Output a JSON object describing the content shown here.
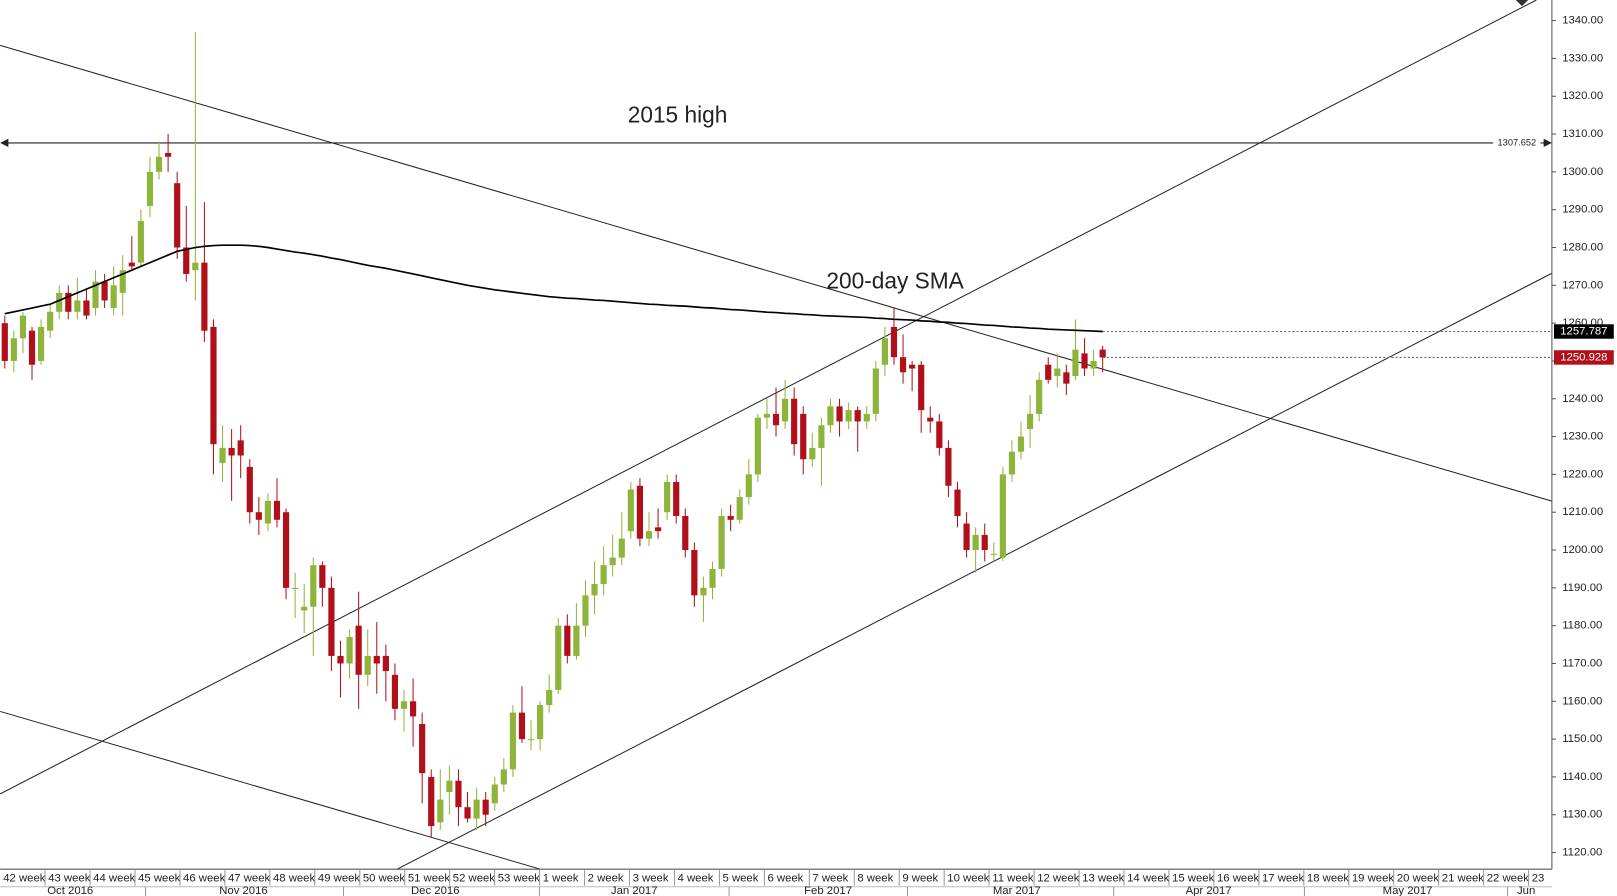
{
  "chart_data": {
    "type": "candlestick",
    "up_color": "#8fb43c",
    "down_color": "#b0101a",
    "open": [
      1260,
      1250,
      1256,
      1258,
      1250,
      1258,
      1263,
      1268,
      1263,
      1266,
      1264,
      1271,
      1264,
      1268,
      1276,
      1276,
      1291,
      1300,
      1305,
      1297,
      1280,
      1274,
      1276,
      1259,
      1223,
      1227,
      1229,
      1222,
      1210,
      1207,
      1213,
      1210,
      1190,
      1184,
      1185,
      1196,
      1190,
      1172,
      1170,
      1180,
      1167,
      1172,
      1172,
      1167,
      1158,
      1160,
      1154,
      1140,
      1128,
      1136,
      1139,
      1132,
      1129,
      1134,
      1133,
      1138,
      1142,
      1157,
      1150,
      1150,
      1159,
      1163,
      1180,
      1172,
      1180,
      1188,
      1191,
      1196,
      1198,
      1205,
      1217,
      1203,
      1206,
      1210,
      1218,
      1209,
      1200,
      1188,
      1190,
      1195,
      1209,
      1208,
      1214,
      1220,
      1235,
      1236,
      1234,
      1240,
      1236,
      1224,
      1227,
      1233,
      1238,
      1234,
      1237,
      1234,
      1236,
      1249,
      1259,
      1251,
      1249,
      1249,
      1235,
      1234,
      1227,
      1216,
      1207,
      1200,
      1204,
      1199,
      1198,
      1220,
      1226,
      1232,
      1236,
      1249,
      1246,
      1247,
      1246,
      1252,
      1248,
      1253
    ],
    "high": [
      1262,
      1258,
      1263,
      1259,
      1261,
      1265,
      1270,
      1270,
      1272,
      1269,
      1274,
      1273,
      1275,
      1278,
      1283,
      1290,
      1304,
      1308,
      1310,
      1300,
      1291,
      1337,
      1292,
      1261,
      1233,
      1232,
      1233,
      1224,
      1214,
      1215,
      1219,
      1211,
      1194,
      1191,
      1198,
      1197,
      1193,
      1176,
      1179,
      1189,
      1179,
      1181,
      1175,
      1170,
      1163,
      1166,
      1157,
      1142,
      1142,
      1143,
      1142,
      1136,
      1137,
      1136,
      1140,
      1145,
      1159,
      1164,
      1155,
      1160,
      1167,
      1182,
      1183,
      1186,
      1192,
      1197,
      1201,
      1204,
      1210,
      1218,
      1219,
      1210,
      1211,
      1220,
      1220,
      1211,
      1202,
      1193,
      1197,
      1211,
      1212,
      1216,
      1224,
      1236,
      1240,
      1243,
      1245,
      1243,
      1238,
      1231,
      1235,
      1240,
      1240,
      1239,
      1238,
      1238,
      1250,
      1259,
      1264,
      1257,
      1250,
      1250,
      1238,
      1236,
      1229,
      1218,
      1210,
      1206,
      1207,
      1202,
      1222,
      1229,
      1234,
      1241,
      1247,
      1251,
      1252,
      1249,
      1261,
      1256,
      1253,
      1254
    ],
    "low": [
      1248,
      1247,
      1252,
      1245,
      1249,
      1256,
      1261,
      1261,
      1261,
      1261,
      1262,
      1264,
      1262,
      1262,
      1274,
      1275,
      1288,
      1298,
      1300,
      1277,
      1271,
      1266,
      1255,
      1220,
      1218,
      1213,
      1219,
      1207,
      1204,
      1205,
      1206,
      1187,
      1182,
      1178,
      1172,
      1185,
      1168,
      1161,
      1166,
      1158,
      1164,
      1162,
      1160,
      1155,
      1152,
      1148,
      1133,
      1124,
      1126,
      1130,
      1127,
      1128,
      1126,
      1127,
      1131,
      1136,
      1140,
      1149,
      1147,
      1147,
      1157,
      1162,
      1170,
      1171,
      1177,
      1183,
      1188,
      1193,
      1196,
      1203,
      1201,
      1201,
      1203,
      1208,
      1207,
      1198,
      1185,
      1181,
      1187,
      1193,
      1205,
      1207,
      1212,
      1218,
      1232,
      1230,
      1232,
      1225,
      1220,
      1222,
      1217,
      1231,
      1230,
      1232,
      1226,
      1232,
      1234,
      1246,
      1249,
      1244,
      1242,
      1231,
      1231,
      1225,
      1214,
      1206,
      1198,
      1194,
      1197,
      1197,
      1197,
      1218,
      1224,
      1227,
      1234,
      1244,
      1243,
      1241,
      1245,
      1246,
      1246,
      1247
    ],
    "close": [
      1250,
      1256,
      1262,
      1249,
      1259,
      1263,
      1268,
      1263,
      1266,
      1262,
      1271,
      1266,
      1270,
      1274,
      1275,
      1287,
      1300,
      1304,
      1304,
      1280,
      1273,
      1276,
      1258,
      1228,
      1227,
      1225,
      1225,
      1210,
      1208,
      1213,
      1208,
      1190,
      1190,
      1185,
      1196,
      1190,
      1172,
      1170,
      1177,
      1167,
      1172,
      1170,
      1168,
      1158,
      1160,
      1156,
      1141,
      1127,
      1134,
      1139,
      1132,
      1129,
      1134,
      1130,
      1138,
      1142,
      1157,
      1150,
      1150,
      1159,
      1163,
      1180,
      1172,
      1180,
      1188,
      1191,
      1196,
      1198,
      1203,
      1216,
      1203,
      1205,
      1205,
      1218,
      1209,
      1200,
      1188,
      1190,
      1195,
      1209,
      1208,
      1214,
      1220,
      1235,
      1236,
      1233,
      1240,
      1228,
      1224,
      1227,
      1233,
      1238,
      1234,
      1237,
      1234,
      1236,
      1248,
      1256,
      1251,
      1247,
      1248,
      1237,
      1234,
      1227,
      1217,
      1209,
      1200,
      1204,
      1200,
      1199,
      1220,
      1226,
      1230,
      1236,
      1245,
      1245,
      1248,
      1244,
      1253,
      1248,
      1250,
      1250.928
    ],
    "sma": {
      "name": "200-day SMA",
      "color": "#000000",
      "values": [
        1262.5,
        1263,
        1263.5,
        1264,
        1264.5,
        1265,
        1266,
        1267,
        1268,
        1269,
        1270,
        1271,
        1272,
        1273,
        1274,
        1275,
        1276,
        1277,
        1278,
        1279,
        1279.5,
        1280,
        1280.3,
        1280.5,
        1280.6,
        1280.6,
        1280.6,
        1280.5,
        1280.3,
        1280,
        1279.6,
        1279.2,
        1278.8,
        1278.5,
        1278.1,
        1277.7,
        1277.2,
        1276.8,
        1276.3,
        1275.8,
        1275.3,
        1274.9,
        1274.5,
        1274,
        1273.5,
        1273,
        1272.5,
        1272,
        1271.5,
        1271,
        1270.5,
        1270,
        1269.6,
        1269.2,
        1268.8,
        1268.5,
        1268.2,
        1267.9,
        1267.6,
        1267.3,
        1267,
        1266.8,
        1266.6,
        1266.5,
        1266.3,
        1266.1,
        1266,
        1265.8,
        1265.6,
        1265.4,
        1265.2,
        1265,
        1264.9,
        1264.7,
        1264.6,
        1264.5,
        1264.3,
        1264.1,
        1264,
        1263.8,
        1263.6,
        1263.5,
        1263.3,
        1263.1,
        1262.9,
        1262.8,
        1262.6,
        1262.5,
        1262.3,
        1262.2,
        1262,
        1261.9,
        1261.8,
        1261.7,
        1261.6,
        1261.5,
        1261.3,
        1261.2,
        1261,
        1260.9,
        1260.8,
        1260.6,
        1260.5,
        1260.3,
        1260.2,
        1260,
        1259.9,
        1259.7,
        1259.5,
        1259.4,
        1259.2,
        1259,
        1258.9,
        1258.7,
        1258.6,
        1258.4,
        1258.3,
        1258.2,
        1258.1,
        1258,
        1257.9,
        1257.787
      ]
    },
    "high_line": {
      "label": "2015 high",
      "value": 1307.652
    },
    "week_labels": [
      "42 week",
      "43 week",
      "44 week",
      "45 week",
      "46 week",
      "47 week",
      "48 week",
      "49 week",
      "50 week",
      "51 week",
      "52 week",
      "53 week",
      "1 week",
      "2 week",
      "3 week",
      "4 week",
      "5 week",
      "6 week",
      "7 week",
      "8 week",
      "9 week",
      "10 week",
      "11 week",
      "12 week",
      "13 week",
      "14 week",
      "15 week",
      "16 week",
      "17 week",
      "18 week",
      "19 week",
      "20 week",
      "21 week",
      "22 week",
      "23"
    ],
    "month_labels": [
      "Oct 2016",
      "Nov 2016",
      "Dec 2016",
      "Jan 2017",
      "Feb 2017",
      "Mar 2017",
      "Apr 2017",
      "May 2017",
      "Jun"
    ],
    "ylim": [
      1115.6,
      1345.45
    ],
    "yticks": [
      {
        "value": 1120,
        "label": "1120.00"
      },
      {
        "value": 1130,
        "label": "1130.00"
      },
      {
        "value": 1140,
        "label": "1140.00"
      },
      {
        "value": 1150,
        "label": "1150.00"
      },
      {
        "value": 1160,
        "label": "1160.00"
      },
      {
        "value": 1170,
        "label": "1170.00"
      },
      {
        "value": 1180,
        "label": "1180.00"
      },
      {
        "value": 1190,
        "label": "1190.00"
      },
      {
        "value": 1200,
        "label": "1200.00"
      },
      {
        "value": 1210,
        "label": "1210.00"
      },
      {
        "value": 1220,
        "label": "1220.00"
      },
      {
        "value": 1230,
        "label": "1230.00"
      },
      {
        "value": 1240,
        "label": "1240.00"
      },
      {
        "value": 1250,
        "label": "1250.00"
      },
      {
        "value": 1260,
        "label": "1260.00"
      },
      {
        "value": 1270,
        "label": "1270.00"
      },
      {
        "value": 1280,
        "label": "1280.00"
      },
      {
        "value": 1290,
        "label": "1290.00"
      },
      {
        "value": 1300,
        "label": "1300.00"
      },
      {
        "value": 1310,
        "label": "1310.00"
      },
      {
        "value": 1320,
        "label": "1320.00"
      },
      {
        "value": 1330,
        "label": "1330.00"
      },
      {
        "value": 1340,
        "label": "1340.00"
      }
    ]
  }
}
